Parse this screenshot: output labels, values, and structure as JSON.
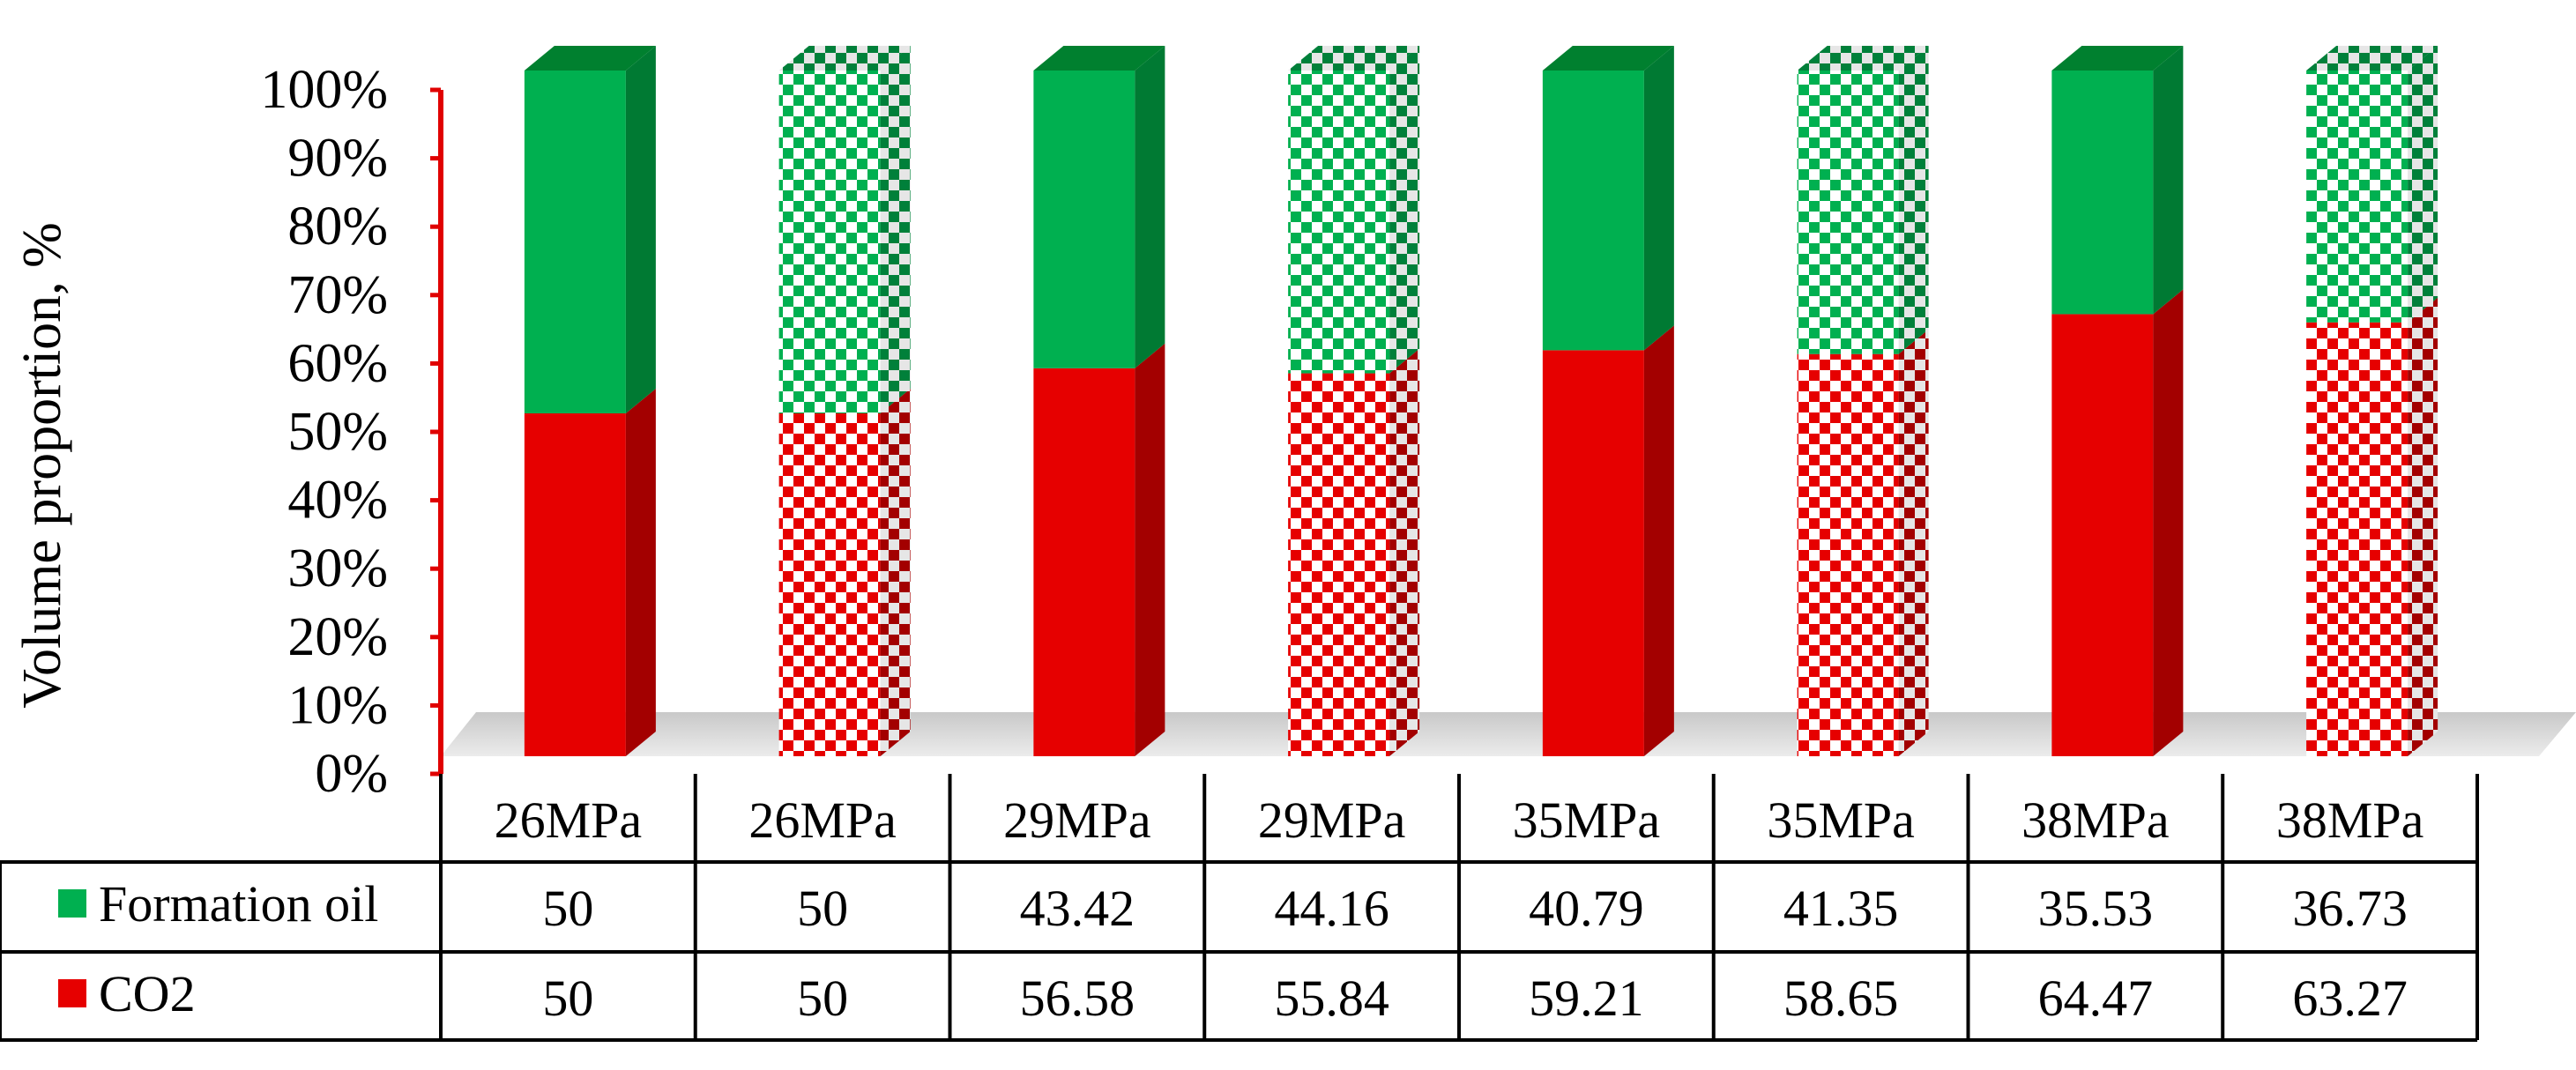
{
  "chart_data": {
    "type": "bar",
    "stacked": true,
    "three_d": true,
    "ylabel": "Volume proportion,  %",
    "ylim": [
      0,
      100
    ],
    "y_ticks": [
      "0%",
      "10%",
      "20%",
      "30%",
      "40%",
      "50%",
      "60%",
      "70%",
      "80%",
      "90%",
      "100%"
    ],
    "categories": [
      "26MPa",
      "26MPa",
      "29MPa",
      "29MPa",
      "35MPa",
      "35MPa",
      "38MPa",
      "38MPa"
    ],
    "bar_styles": [
      "solid",
      "checkered",
      "solid",
      "checkered",
      "solid",
      "checkered",
      "solid",
      "checkered"
    ],
    "series": [
      {
        "name": "CO2",
        "values": [
          50,
          50,
          56.58,
          55.84,
          59.21,
          58.65,
          64.47,
          63.27
        ],
        "labels": [
          "50",
          "50",
          "56.58",
          "55.84",
          "59.21",
          "58.65",
          "64.47",
          "63.27"
        ],
        "color": "#e60000"
      },
      {
        "name": "Formation oil",
        "values": [
          50,
          50,
          43.42,
          44.16,
          40.79,
          41.35,
          35.53,
          36.73
        ],
        "labels": [
          "50",
          "50",
          "43.42",
          "44.16",
          "40.79",
          "41.35",
          "35.53",
          "36.73"
        ],
        "color": "#00b050"
      }
    ],
    "data_table": true,
    "legend_placement": "data-table",
    "axis_color": "#e00000",
    "floor_color": "#d9d9d9"
  }
}
